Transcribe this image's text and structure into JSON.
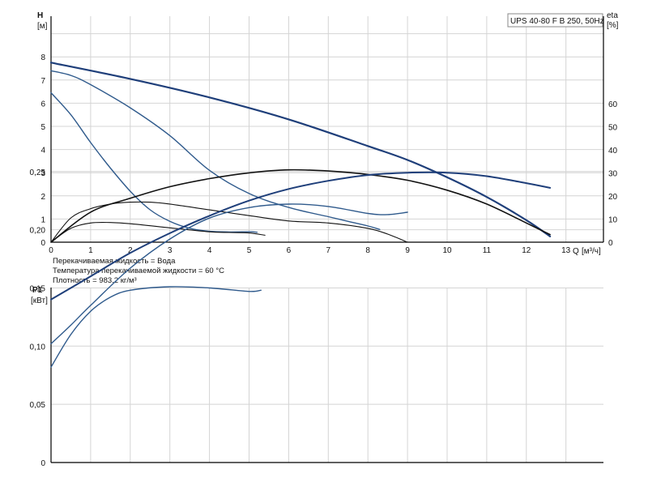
{
  "chart_data": [
    {
      "type": "line",
      "title": "UPS 40-80 F B 250, 50Hz",
      "y_axis_label": "H",
      "y_unit": "[м]",
      "x_axis_label": "Q",
      "x_unit": "[м³/ч]",
      "y2_axis_label": "eta",
      "y2_unit": "[%]",
      "xlim": [
        0,
        14
      ],
      "ylim": [
        0,
        10
      ],
      "y2lim": [
        0,
        100
      ],
      "x_ticks": [
        0,
        1,
        2,
        3,
        4,
        5,
        6,
        7,
        8,
        9,
        10,
        11,
        12,
        13
      ],
      "y_ticks": [
        0,
        1,
        2,
        3,
        4,
        5,
        6,
        7,
        8
      ],
      "y2_ticks": [
        0,
        10,
        20,
        30,
        40,
        50,
        60
      ],
      "grid": true,
      "series": [
        {
          "color": "#1f3f7a",
          "width": 2.2,
          "axis": "H",
          "points": [
            [
              0,
              7.75
            ],
            [
              2,
              7.05
            ],
            [
              4,
              6.25
            ],
            [
              6,
              5.3
            ],
            [
              8,
              4.15
            ],
            [
              9,
              3.55
            ],
            [
              10,
              2.8
            ],
            [
              11,
              1.95
            ],
            [
              12,
              0.95
            ],
            [
              12.6,
              0.25
            ]
          ]
        },
        {
          "color": "#2f5a8c",
          "width": 1.4,
          "axis": "H",
          "points": [
            [
              0,
              7.4
            ],
            [
              0.5,
              7.2
            ],
            [
              1,
              6.8
            ],
            [
              2,
              5.8
            ],
            [
              3,
              4.6
            ],
            [
              4,
              3.1
            ],
            [
              5,
              2.1
            ],
            [
              6,
              1.5
            ],
            [
              7,
              1.1
            ],
            [
              7.5,
              0.9
            ],
            [
              8,
              0.7
            ],
            [
              8.3,
              0.55
            ]
          ]
        },
        {
          "color": "#2f5a8c",
          "width": 1.4,
          "axis": "H",
          "points": [
            [
              0,
              6.45
            ],
            [
              0.5,
              5.5
            ],
            [
              1,
              4.3
            ],
            [
              1.5,
              3.2
            ],
            [
              2,
              2.2
            ],
            [
              2.5,
              1.4
            ],
            [
              3,
              0.9
            ],
            [
              3.5,
              0.6
            ],
            [
              4,
              0.47
            ],
            [
              4.5,
              0.44
            ],
            [
              5,
              0.45
            ],
            [
              5.2,
              0.43
            ]
          ]
        },
        {
          "color": "#111111",
          "width": 1.6,
          "axis": "eta",
          "points": [
            [
              0,
              0
            ],
            [
              1,
              13
            ],
            [
              2,
              19
            ],
            [
              3,
              24
            ],
            [
              4,
              27.5
            ],
            [
              5,
              30
            ],
            [
              6,
              31.3
            ],
            [
              7,
              30.8
            ],
            [
              8,
              29.3
            ],
            [
              9,
              26.8
            ],
            [
              10,
              22.5
            ],
            [
              11,
              16.5
            ],
            [
              12,
              8.3
            ],
            [
              12.6,
              3.3
            ]
          ]
        },
        {
          "color": "#111111",
          "width": 1.1,
          "axis": "eta",
          "points": [
            [
              0,
              0
            ],
            [
              0.5,
              10.5
            ],
            [
              1,
              14.5
            ],
            [
              1.5,
              16.5
            ],
            [
              2,
              17.3
            ],
            [
              2.5,
              17.3
            ],
            [
              3,
              16.5
            ],
            [
              4,
              14
            ],
            [
              5,
              11.5
            ],
            [
              6,
              9.2
            ],
            [
              7,
              8.3
            ],
            [
              8,
              6
            ],
            [
              8.5,
              3.5
            ],
            [
              9,
              0
            ]
          ]
        },
        {
          "color": "#111111",
          "width": 1.1,
          "axis": "eta",
          "points": [
            [
              0,
              0
            ],
            [
              0.5,
              6
            ],
            [
              1,
              8.3
            ],
            [
              1.5,
              8.5
            ],
            [
              2,
              8
            ],
            [
              3,
              6.2
            ],
            [
              4,
              4.5
            ],
            [
              4.5,
              4.2
            ],
            [
              5,
              4
            ],
            [
              5.4,
              3
            ]
          ]
        }
      ]
    },
    {
      "type": "line",
      "y_axis_label": "P1",
      "y_unit": "[кВт]",
      "xlim": [
        0,
        14
      ],
      "ylim": [
        0,
        0.28
      ],
      "y_ticks": [
        "0",
        "0,05",
        "0,10",
        "0,15",
        "0,20",
        "0,25"
      ],
      "y_tick_values": [
        0,
        0.05,
        0.1,
        0.15,
        0.2,
        0.25
      ],
      "grid": true,
      "series": [
        {
          "color": "#1f3f7a",
          "width": 2.0,
          "points": [
            [
              0,
              0.14
            ],
            [
              1,
              0.16
            ],
            [
              2,
              0.18
            ],
            [
              3,
              0.197
            ],
            [
              4,
              0.212
            ],
            [
              5,
              0.225
            ],
            [
              6,
              0.235
            ],
            [
              7,
              0.242
            ],
            [
              8,
              0.247
            ],
            [
              9,
              0.249
            ],
            [
              10,
              0.249
            ],
            [
              11,
              0.246
            ],
            [
              12,
              0.24
            ],
            [
              12.6,
              0.236
            ]
          ]
        },
        {
          "color": "#2f5a8c",
          "width": 1.4,
          "points": [
            [
              0,
              0.102
            ],
            [
              0.5,
              0.118
            ],
            [
              1,
              0.135
            ],
            [
              2,
              0.167
            ],
            [
              3,
              0.192
            ],
            [
              4,
              0.21
            ],
            [
              5,
              0.219
            ],
            [
              6,
              0.222
            ],
            [
              7,
              0.22
            ],
            [
              8,
              0.214
            ],
            [
              8.5,
              0.213
            ],
            [
              9,
              0.215
            ]
          ]
        },
        {
          "color": "#2f5a8c",
          "width": 1.4,
          "points": [
            [
              0,
              0.082
            ],
            [
              0.5,
              0.11
            ],
            [
              1,
              0.13
            ],
            [
              1.5,
              0.142
            ],
            [
              2,
              0.148
            ],
            [
              3,
              0.151
            ],
            [
              4,
              0.15
            ],
            [
              5,
              0.147
            ],
            [
              5.3,
              0.148
            ]
          ]
        }
      ]
    }
  ],
  "notes": [
    "Перекачиваемая жидкость = Вода",
    "Температура перекачиваемой жидкости = 60 °C",
    "Плотность = 983.2 кг/м³"
  ]
}
